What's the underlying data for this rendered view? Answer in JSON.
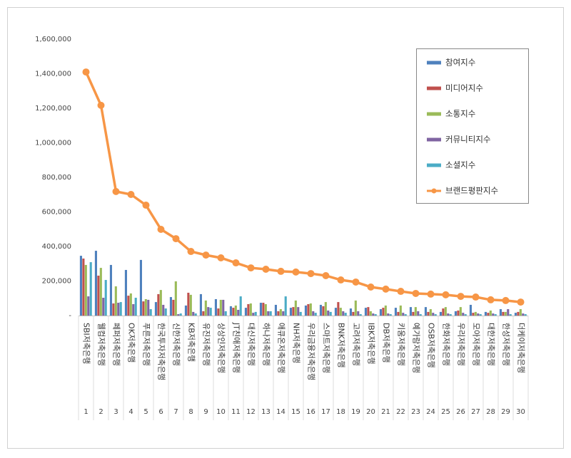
{
  "chart_data": {
    "type": "bar-line",
    "categories": [
      "SBI저축은행",
      "웰컴저축은행",
      "페퍼저축은행",
      "OK저축은행",
      "푸른저축은행",
      "한국투자저축은행",
      "신한저축은행",
      "KB저축은행",
      "유진저축은행",
      "상상인저축은행",
      "JT친애저축은행",
      "대신저축은행",
      "하나저축은행",
      "애큐온저축은행",
      "NH저축은행",
      "우리금융저축은행",
      "스마트저축은행",
      "BNK저축은행",
      "고려저축은행",
      "IBK저축은행",
      "DB저축은행",
      "키움저축은행",
      "예가람저축은행",
      "OSB저축은행",
      "한화저축은행",
      "우리저축은행",
      "모아저축은행",
      "대한저축은행",
      "한성저축은행",
      "더케이저축은행"
    ],
    "ranks": [
      1,
      2,
      3,
      4,
      5,
      6,
      7,
      8,
      9,
      10,
      11,
      12,
      13,
      14,
      15,
      16,
      17,
      18,
      19,
      20,
      21,
      22,
      23,
      24,
      25,
      26,
      27,
      28,
      29,
      30
    ],
    "ylim": [
      0,
      1600000
    ],
    "yticks": [
      {
        "value": 0,
        "label": "-"
      },
      {
        "value": 200000,
        "label": "200,000"
      },
      {
        "value": 400000,
        "label": "400,000"
      },
      {
        "value": 600000,
        "label": "600,000"
      },
      {
        "value": 800000,
        "label": "800,000"
      },
      {
        "value": 1000000,
        "label": "1,000,000"
      },
      {
        "value": 1200000,
        "label": "1,200,000"
      },
      {
        "value": 1400000,
        "label": "1,400,000"
      },
      {
        "value": 1600000,
        "label": "1,600,000"
      }
    ],
    "grid": false,
    "legend": "upper right",
    "series": [
      {
        "name": "참여지수",
        "type": "bar",
        "color": "#4f81bd",
        "values": [
          346000,
          375000,
          293000,
          264000,
          322000,
          78000,
          107000,
          58000,
          124000,
          95000,
          54000,
          45000,
          74000,
          62000,
          45000,
          58000,
          62000,
          45000,
          41000,
          45000,
          37000,
          45000,
          49000,
          49000,
          21000,
          25000,
          62000,
          21000,
          37000,
          16000
        ]
      },
      {
        "name": "미디어지수",
        "type": "bar",
        "color": "#c0504d",
        "values": [
          330000,
          231000,
          70000,
          115000,
          82000,
          124000,
          91000,
          132000,
          25000,
          41000,
          45000,
          66000,
          74000,
          25000,
          49000,
          66000,
          54000,
          78000,
          21000,
          49000,
          45000,
          21000,
          21000,
          21000,
          41000,
          29000,
          16000,
          16000,
          21000,
          21000
        ]
      },
      {
        "name": "소통지수",
        "type": "bar",
        "color": "#9bbb59",
        "values": [
          293000,
          276000,
          169000,
          128000,
          95000,
          148000,
          198000,
          120000,
          87000,
          91000,
          58000,
          70000,
          66000,
          37000,
          87000,
          70000,
          78000,
          45000,
          87000,
          25000,
          58000,
          58000,
          49000,
          37000,
          49000,
          49000,
          21000,
          29000,
          21000,
          37000
        ]
      },
      {
        "name": "커뮤니티지수",
        "type": "bar",
        "color": "#8064a2",
        "values": [
          111000,
          103000,
          74000,
          66000,
          91000,
          62000,
          8000,
          21000,
          49000,
          91000,
          33000,
          16000,
          25000,
          25000,
          49000,
          25000,
          29000,
          25000,
          25000,
          12000,
          12000,
          16000,
          25000,
          16000,
          12000,
          16000,
          12000,
          12000,
          37000,
          12000
        ]
      },
      {
        "name": "소셜지수",
        "type": "bar",
        "color": "#4bacc6",
        "values": [
          309000,
          206000,
          78000,
          103000,
          37000,
          41000,
          12000,
          12000,
          45000,
          25000,
          111000,
          21000,
          25000,
          111000,
          21000,
          16000,
          21000,
          16000,
          8000,
          8000,
          8000,
          8000,
          8000,
          8000,
          8000,
          8000,
          8000,
          8000,
          8000,
          8000
        ]
      },
      {
        "name": "브랜드평판지수",
        "type": "line",
        "color": "#f79646",
        "values": [
          1410000,
          1217000,
          718000,
          701000,
          639000,
          499000,
          445000,
          371000,
          350000,
          334000,
          305000,
          276000,
          268000,
          256000,
          252000,
          243000,
          231000,
          206000,
          194000,
          165000,
          153000,
          140000,
          128000,
          124000,
          120000,
          111000,
          107000,
          91000,
          87000,
          78000
        ]
      }
    ]
  }
}
